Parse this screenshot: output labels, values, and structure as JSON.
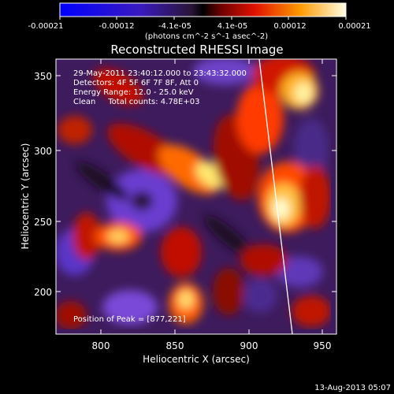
{
  "colorbar": {
    "ticks": [
      "-0.00021",
      "-0.00012",
      "-4.1e-05",
      "4.1e-05",
      "0.00012",
      "0.00021"
    ],
    "unit_text": "(photons cm^-2 s^-1 asec^-2)"
  },
  "title": "Reconstructed RHESSI Image",
  "annotations": [
    "29-May-2011 23:40:12.000 to 23:43:32.000",
    "Detectors: 4F 5F 6F 7F 8F, Att 0",
    "Energy Range: 12.0 - 25.0 keV",
    "Clean     Total counts: 4.78E+03"
  ],
  "peak_text": "Position of Peak = [877,221]",
  "xaxis": {
    "label": "Heliocentric X (arcsec)",
    "ticks": [
      "800",
      "850",
      "900",
      "950"
    ],
    "range": [
      770,
      962
    ]
  },
  "yaxis": {
    "label": "Heliocentric Y (arcsec)",
    "ticks": [
      "200",
      "250",
      "300",
      "350"
    ],
    "range": [
      170,
      362
    ]
  },
  "footer": "13-Aug-2013 05:07"
}
